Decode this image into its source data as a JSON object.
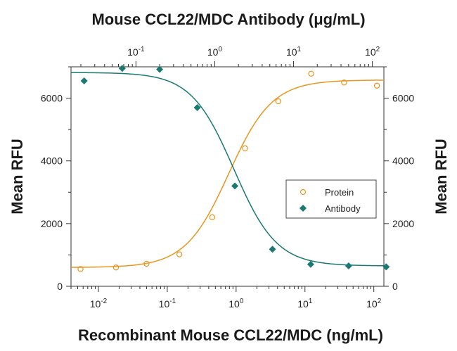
{
  "chart_data": {
    "type": "scatter",
    "title": "Mouse CCL22/MDC Antibody (μg/mL)",
    "xlabel": "Recombinant Mouse CCL22/MDC (ng/mL)",
    "ylabel": "Mean RFU",
    "y2label": "Mean RFU",
    "x_scale": "log",
    "x_range": [
      0.004,
      140
    ],
    "x_ticks": [
      "10",
      "10",
      "10",
      "10",
      "10"
    ],
    "x_tick_exponents": [
      "-2",
      "-1",
      "0",
      "1",
      "2"
    ],
    "x_tick_values": [
      0.01,
      0.1,
      1,
      10,
      100
    ],
    "top_x_scale": "log",
    "top_x_range": [
      0.015,
      140
    ],
    "top_x_ticks": [
      "10",
      "10",
      "10",
      "10"
    ],
    "top_x_tick_exponents": [
      "-1",
      "0",
      "1",
      "2"
    ],
    "top_x_tick_values": [
      0.1,
      1,
      10,
      100
    ],
    "y_range": [
      0,
      7000
    ],
    "y_ticks": [
      "0",
      "2000",
      "4000",
      "6000"
    ],
    "y_tick_values": [
      0,
      2000,
      4000,
      6000
    ],
    "grid": false,
    "legend_position": "center-right",
    "series": [
      {
        "name": "Protein",
        "axis": "bottom",
        "marker": "open-circle",
        "color": "#e8961e",
        "x": [
          0.0055,
          0.018,
          0.05,
          0.15,
          0.45,
          1.35,
          4.1,
          12.3,
          37,
          111
        ],
        "y": [
          550,
          600,
          720,
          1020,
          2200,
          4400,
          5900,
          6780,
          6500,
          6400
        ],
        "fit": {
          "bottom": 600,
          "top": 6580,
          "ec50": 0.78,
          "hill": 1.38
        }
      },
      {
        "name": "Antibody",
        "axis": "top",
        "marker": "filled-diamond",
        "color": "#1a7a72",
        "x": [
          0.022,
          0.067,
          0.2,
          0.6,
          1.8,
          5.4,
          16.5,
          50,
          150
        ],
        "y": [
          6550,
          6950,
          6920,
          5700,
          3200,
          1180,
          700,
          650,
          620
        ],
        "fit": {
          "bottom": 650,
          "top": 6820,
          "ec50": 1.75,
          "hill": -1.6
        }
      }
    ]
  }
}
